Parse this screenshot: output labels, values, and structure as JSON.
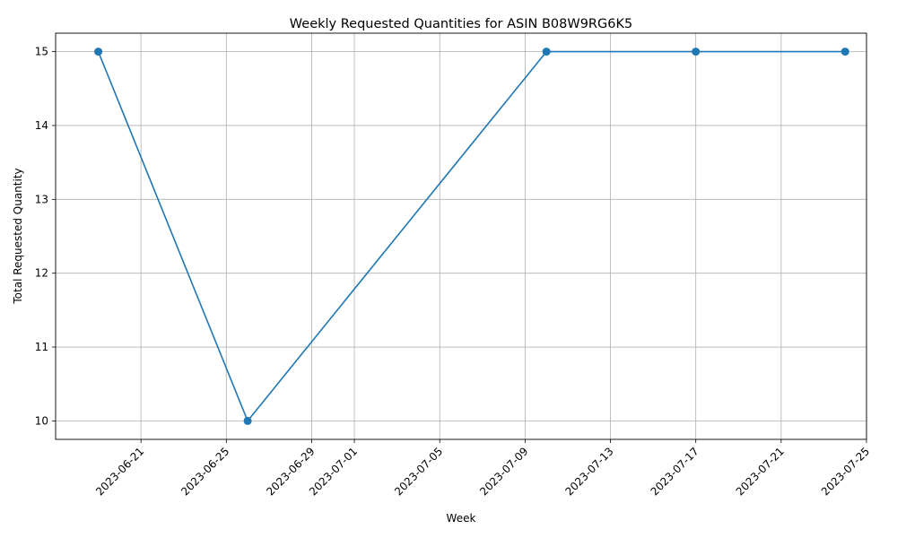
{
  "chart_data": {
    "type": "line",
    "title": "Weekly Requested Quantities for ASIN B08W9RG6K5",
    "xlabel": "Week",
    "ylabel": "Total Requested Quantity",
    "x_type": "date",
    "x": [
      "2023-06-19",
      "2023-06-26",
      "2023-07-10",
      "2023-07-17",
      "2023-07-24"
    ],
    "series": [
      {
        "values": [
          15,
          10,
          15,
          15,
          15
        ],
        "color": "#1f77b4",
        "marker": "circle"
      }
    ],
    "xlim": [
      "2023-06-17",
      "2023-07-25"
    ],
    "ylim": [
      9.75,
      15.25
    ],
    "x_ticks": [
      "2023-06-21",
      "2023-06-25",
      "2023-06-29",
      "2023-07-01",
      "2023-07-05",
      "2023-07-09",
      "2023-07-13",
      "2023-07-17",
      "2023-07-21",
      "2023-07-25"
    ],
    "y_ticks": [
      "10",
      "11",
      "12",
      "13",
      "14",
      "15"
    ],
    "x_tick_rotation": 45,
    "grid": true,
    "legend": false
  },
  "colors": {
    "line": "#1f77b4",
    "grid": "#b0b0b0",
    "axes": "#000000",
    "background": "#ffffff"
  }
}
